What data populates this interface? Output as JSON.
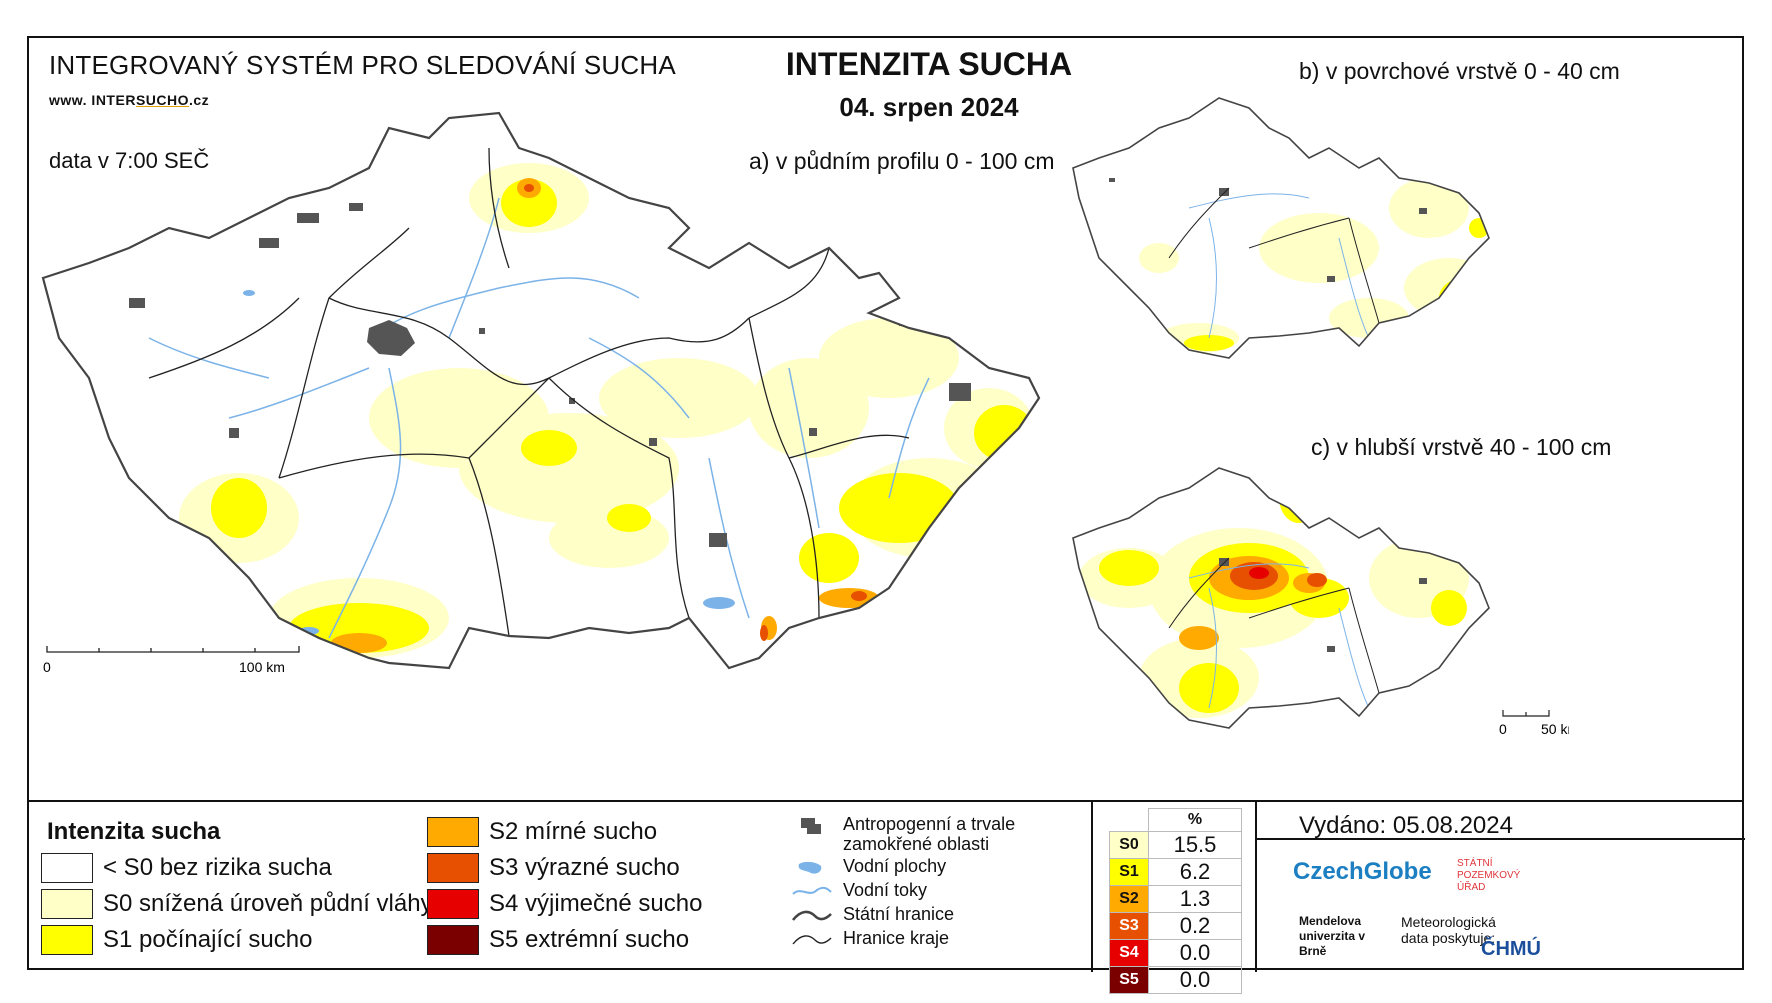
{
  "header": {
    "system": "INTEGROVANÝ SYSTÉM PRO SLEDOVÁNÍ SUCHA",
    "web_prefix": "www. INTER",
    "web_underlined": "SUCHO",
    "web_suffix": ".cz",
    "data_time": "data v 7:00 SEČ",
    "title": "INTENZITA SUCHA",
    "date": "04. srpen 2024"
  },
  "maps": {
    "main_label": "a) v půdním profilu 0 - 100 cm",
    "surface_label": "b) v povrchové vrstvě 0 - 40 cm",
    "deep_label": "c) v hlubší vrstvě 40 - 100 cm",
    "main_scale": {
      "start": "0",
      "end": "100 km"
    },
    "small_scale": {
      "start": "0",
      "end": "50 km"
    }
  },
  "legend": {
    "title": "Intenzita sucha",
    "classes": [
      {
        "code": "none",
        "label": "< S0 bez rizika sucha",
        "color": "#ffffff"
      },
      {
        "code": "S0",
        "label": "S0 snížená úroveň půdní vláhy",
        "color": "#ffffc8"
      },
      {
        "code": "S1",
        "label": "S1 počínající sucho",
        "color": "#ffff00"
      },
      {
        "code": "S2",
        "label": "S2 mírné sucho",
        "color": "#ffaa00"
      },
      {
        "code": "S3",
        "label": "S3 výrazné sucho",
        "color": "#e65000"
      },
      {
        "code": "S4",
        "label": "S4 výjimečné sucho",
        "color": "#e60000"
      },
      {
        "code": "S5",
        "label": "S5 extrémní sucho",
        "color": "#7a0000"
      }
    ],
    "symbols": [
      {
        "icon": "urban-area-icon",
        "label": "Antropogenní a trvale zamokřené oblasti"
      },
      {
        "icon": "water-body-icon",
        "label": "Vodní plochy"
      },
      {
        "icon": "river-icon",
        "label": "Vodní toky"
      },
      {
        "icon": "state-border-icon",
        "label": "Státní hranice"
      },
      {
        "icon": "region-border-icon",
        "label": "Hranice kraje"
      }
    ]
  },
  "percent_table": {
    "header": "%",
    "rows": [
      {
        "code": "S0",
        "value": "15.5",
        "color": "#ffffc8"
      },
      {
        "code": "S1",
        "value": "6.2",
        "color": "#ffff00"
      },
      {
        "code": "S2",
        "value": "1.3",
        "color": "#ffaa00"
      },
      {
        "code": "S3",
        "value": "0.2",
        "color": "#e65000"
      },
      {
        "code": "S4",
        "value": "0.0",
        "color": "#e60000"
      },
      {
        "code": "S5",
        "value": "0.0",
        "color": "#7a0000"
      }
    ]
  },
  "footer": {
    "issued": "Vydáno: 05.08.2024",
    "czechglobe": "CzechGlobe",
    "spu": "STÁTNÍ POZEMKOVÝ ÚŘAD",
    "mendel": "Mendelova univerzita v Brně",
    "meteo": "Meteorologická data poskytuje:",
    "chmu": "ČHMÚ"
  }
}
